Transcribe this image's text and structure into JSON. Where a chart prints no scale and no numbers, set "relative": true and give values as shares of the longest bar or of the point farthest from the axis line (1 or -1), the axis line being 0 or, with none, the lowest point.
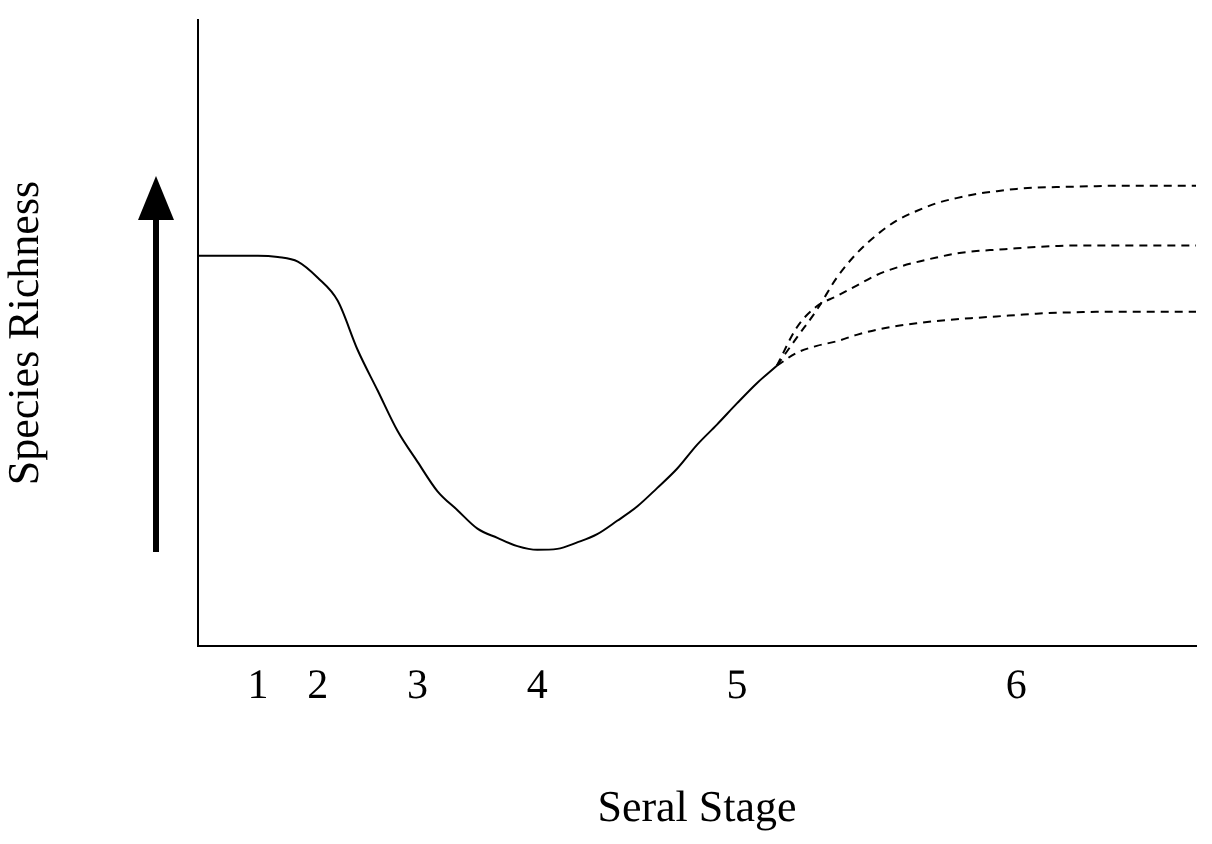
{
  "chart_data": {
    "type": "line",
    "xlabel": "Seral Stage",
    "ylabel": "Species Richness",
    "relative": true,
    "grid": false,
    "legend": false,
    "marker": "none",
    "tick_labels": "x",
    "categories": [
      null,
      null,
      null,
      "1",
      null,
      null,
      "2",
      null,
      null,
      null,
      null,
      "3",
      null,
      null,
      null,
      null,
      null,
      "4",
      null,
      null,
      null,
      null,
      null,
      null,
      null,
      null,
      null,
      "5",
      null,
      null,
      null,
      null,
      null,
      null,
      null,
      null,
      null,
      null,
      null,
      null,
      null,
      "6",
      null,
      null,
      null,
      null,
      null,
      null,
      null,
      null,
      null
    ],
    "series": [
      {
        "color": "#000000",
        "line_style": "solid",
        "values": [
          0.848,
          0.848,
          0.848,
          0.848,
          0.845,
          0.835,
          0.8,
          0.75,
          0.643,
          0.555,
          0.467,
          0.4,
          0.336,
          0.295,
          0.255,
          0.235,
          0.217,
          0.209,
          0.211,
          0.225,
          0.243,
          0.272,
          0.303,
          0.343,
          0.385,
          0.437,
          0.481,
          0.527,
          0.571,
          0.609,
          null,
          null,
          null,
          null,
          null,
          null,
          null,
          null,
          null,
          null,
          null,
          null,
          null,
          null,
          null,
          null,
          null,
          null,
          null,
          null,
          null
        ]
      },
      {
        "color": "#000000",
        "line_style": "dashed",
        "values": [
          null,
          null,
          null,
          null,
          null,
          null,
          null,
          null,
          null,
          null,
          null,
          null,
          null,
          null,
          null,
          null,
          null,
          null,
          null,
          null,
          null,
          null,
          null,
          null,
          null,
          null,
          null,
          null,
          null,
          0.609,
          0.67,
          0.73,
          0.8,
          0.853,
          0.893,
          0.924,
          0.945,
          0.962,
          0.973,
          0.982,
          0.988,
          0.993,
          0.996,
          0.997,
          0.998,
          0.999,
          1,
          1,
          1,
          1,
          1
        ]
      },
      {
        "color": "#000000",
        "line_style": "dashed",
        "values": [
          null,
          null,
          null,
          null,
          null,
          null,
          null,
          null,
          null,
          null,
          null,
          null,
          null,
          null,
          null,
          null,
          null,
          null,
          null,
          null,
          null,
          null,
          null,
          null,
          null,
          null,
          null,
          null,
          null,
          0.609,
          0.692,
          0.738,
          0.76,
          0.783,
          0.806,
          0.822,
          0.834,
          0.844,
          0.853,
          0.858,
          0.861,
          0.864,
          0.867,
          0.869,
          0.87,
          0.87,
          0.87,
          0.87,
          0.87,
          0.87,
          0.87
        ]
      },
      {
        "color": "#000000",
        "line_style": "dashed",
        "values": [
          null,
          null,
          null,
          null,
          null,
          null,
          null,
          null,
          null,
          null,
          null,
          null,
          null,
          null,
          null,
          null,
          null,
          null,
          null,
          null,
          null,
          null,
          null,
          null,
          null,
          null,
          null,
          null,
          null,
          0.609,
          0.637,
          0.652,
          0.662,
          0.676,
          0.687,
          0.695,
          0.701,
          0.706,
          0.71,
          0.713,
          0.716,
          0.719,
          0.722,
          0.724,
          0.725,
          0.726,
          0.726,
          0.726,
          0.726,
          0.726,
          0.726
        ]
      }
    ]
  }
}
